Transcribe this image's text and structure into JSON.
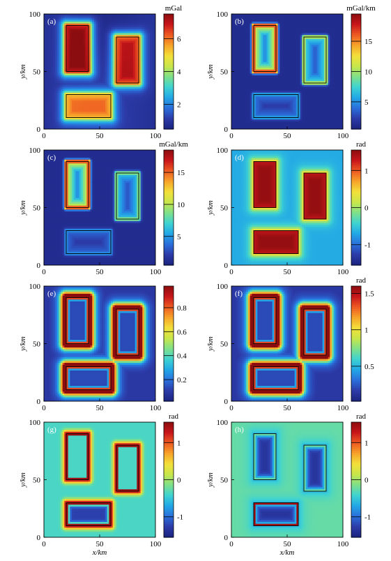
{
  "x_label": "x/km",
  "y_label": "y/km",
  "colormap": [
    "#1a237e",
    "#2c3ba8",
    "#2a6fdb",
    "#22a7e6",
    "#3ed3d2",
    "#7fe08a",
    "#c8e64a",
    "#f3e03a",
    "#f7a32a",
    "#ee5a22",
    "#c8161b",
    "#8b0d0f"
  ],
  "chart_data": [
    {
      "type": "heatmap",
      "panel": "(a)",
      "colorbar_unit": "mGal",
      "xlim": [
        0,
        100
      ],
      "ylim": [
        0,
        100
      ],
      "x_ticks": [
        "0",
        "50",
        "100"
      ],
      "y_ticks": [
        "0",
        "50",
        "100"
      ],
      "colorbar_ticks": [
        "2",
        "4",
        "6"
      ],
      "colorbar_range": [
        0.5,
        7.5
      ],
      "bodies": [
        {
          "x": [
            20,
            40
          ],
          "y": [
            50,
            90
          ],
          "value": 7.0
        },
        {
          "x": [
            65,
            85
          ],
          "y": [
            40,
            80
          ],
          "value": 6.2
        },
        {
          "x": [
            20,
            60
          ],
          "y": [
            10,
            30
          ],
          "value": 5.0
        }
      ],
      "pattern": "plateau"
    },
    {
      "type": "heatmap",
      "panel": "(b)",
      "colorbar_unit": "mGal/km",
      "xlim": [
        0,
        100
      ],
      "ylim": [
        0,
        100
      ],
      "x_ticks": [
        "0",
        "50",
        "100"
      ],
      "y_ticks": [
        "0",
        "50",
        "100"
      ],
      "colorbar_ticks": [
        "5",
        "10",
        "15"
      ],
      "colorbar_range": [
        0.5,
        19.5
      ],
      "bodies": [
        {
          "x": [
            20,
            40
          ],
          "y": [
            50,
            90
          ],
          "value": 18
        },
        {
          "x": [
            65,
            85
          ],
          "y": [
            40,
            80
          ],
          "value": 11
        },
        {
          "x": [
            20,
            60
          ],
          "y": [
            10,
            30
          ],
          "value": 5
        }
      ],
      "pattern": "gradient"
    },
    {
      "type": "heatmap",
      "panel": "(c)",
      "colorbar_unit": "mGal/km",
      "xlim": [
        0,
        100
      ],
      "ylim": [
        0,
        100
      ],
      "x_ticks": [
        "0",
        "50",
        "100"
      ],
      "y_ticks": [
        "0",
        "50",
        "100"
      ],
      "colorbar_ticks": [
        "5",
        "10",
        "15"
      ],
      "colorbar_range": [
        0.5,
        18.5
      ],
      "bodies": [
        {
          "x": [
            20,
            40
          ],
          "y": [
            50,
            90
          ],
          "value": 17
        },
        {
          "x": [
            65,
            85
          ],
          "y": [
            40,
            80
          ],
          "value": 9
        },
        {
          "x": [
            20,
            60
          ],
          "y": [
            10,
            30
          ],
          "value": 4
        }
      ],
      "pattern": "gradient"
    },
    {
      "type": "heatmap",
      "panel": "(d)",
      "colorbar_unit": "rad",
      "xlim": [
        0,
        100
      ],
      "ylim": [
        0,
        100
      ],
      "x_ticks": [
        "0",
        "50",
        "100"
      ],
      "y_ticks": [
        "0",
        "50",
        "100"
      ],
      "colorbar_ticks": [
        "-1",
        "0",
        "1"
      ],
      "colorbar_range": [
        -1.55,
        1.55
      ],
      "bodies": [
        {
          "x": [
            20,
            40
          ],
          "y": [
            50,
            90
          ],
          "value": 1.5
        },
        {
          "x": [
            65,
            85
          ],
          "y": [
            40,
            80
          ],
          "value": 1.5
        },
        {
          "x": [
            20,
            60
          ],
          "y": [
            10,
            30
          ],
          "value": 1.5
        }
      ],
      "pattern": "tilt"
    },
    {
      "type": "heatmap",
      "panel": "(e)",
      "colorbar_unit": "",
      "xlim": [
        0,
        100
      ],
      "ylim": [
        0,
        100
      ],
      "x_ticks": [
        "0",
        "50",
        "100"
      ],
      "y_ticks": [
        "0",
        "50",
        "100"
      ],
      "colorbar_ticks": [
        "0.2",
        "0.4",
        "0.6",
        "0.8"
      ],
      "colorbar_range": [
        0.02,
        0.98
      ],
      "bodies": [
        {
          "x": [
            20,
            40
          ],
          "y": [
            50,
            90
          ],
          "value": 0.95
        },
        {
          "x": [
            65,
            85
          ],
          "y": [
            40,
            80
          ],
          "value": 0.95
        },
        {
          "x": [
            20,
            60
          ],
          "y": [
            10,
            30
          ],
          "value": 0.95
        }
      ],
      "pattern": "edge"
    },
    {
      "type": "heatmap",
      "panel": "(f)",
      "colorbar_unit": "rad",
      "xlim": [
        0,
        100
      ],
      "ylim": [
        0,
        100
      ],
      "x_ticks": [
        "0",
        "50",
        "100"
      ],
      "y_ticks": [
        "0",
        "50",
        "100"
      ],
      "colorbar_ticks": [
        "0.5",
        "1",
        "1.5"
      ],
      "colorbar_range": [
        0.02,
        1.6
      ],
      "bodies": [
        {
          "x": [
            20,
            40
          ],
          "y": [
            50,
            90
          ],
          "value": 1.55
        },
        {
          "x": [
            65,
            85
          ],
          "y": [
            40,
            80
          ],
          "value": 1.55
        },
        {
          "x": [
            20,
            60
          ],
          "y": [
            10,
            30
          ],
          "value": 1.55
        }
      ],
      "pattern": "edge"
    },
    {
      "type": "heatmap",
      "panel": "(g)",
      "colorbar_unit": "rad",
      "xlim": [
        0,
        100
      ],
      "ylim": [
        0,
        100
      ],
      "x_ticks": [
        "0",
        "50",
        "100"
      ],
      "y_ticks": [
        "0",
        "50",
        "100"
      ],
      "colorbar_ticks": [
        "-1",
        "0",
        "1"
      ],
      "colorbar_range": [
        -1.55,
        1.55
      ],
      "bodies": [
        {
          "x": [
            20,
            40
          ],
          "y": [
            50,
            90
          ],
          "value": 1.5
        },
        {
          "x": [
            65,
            85
          ],
          "y": [
            40,
            80
          ],
          "value": 1.5
        },
        {
          "x": [
            20,
            60
          ],
          "y": [
            10,
            30
          ],
          "value": 1.5
        }
      ],
      "pattern": "edge-signed"
    },
    {
      "type": "heatmap",
      "panel": "(h)",
      "colorbar_unit": "rad",
      "xlim": [
        0,
        100
      ],
      "ylim": [
        0,
        100
      ],
      "x_ticks": [
        "0",
        "50",
        "100"
      ],
      "y_ticks": [
        "0",
        "50",
        "100"
      ],
      "colorbar_ticks": [
        "-1",
        "0",
        "1"
      ],
      "colorbar_range": [
        -1.55,
        1.55
      ],
      "bodies": [
        {
          "x": [
            20,
            40
          ],
          "y": [
            50,
            90
          ],
          "value": 1.5
        },
        {
          "x": [
            65,
            85
          ],
          "y": [
            40,
            80
          ],
          "value": 1.5
        },
        {
          "x": [
            20,
            60
          ],
          "y": [
            10,
            30
          ],
          "value": 1.5
        }
      ],
      "pattern": "edge-inner"
    }
  ]
}
